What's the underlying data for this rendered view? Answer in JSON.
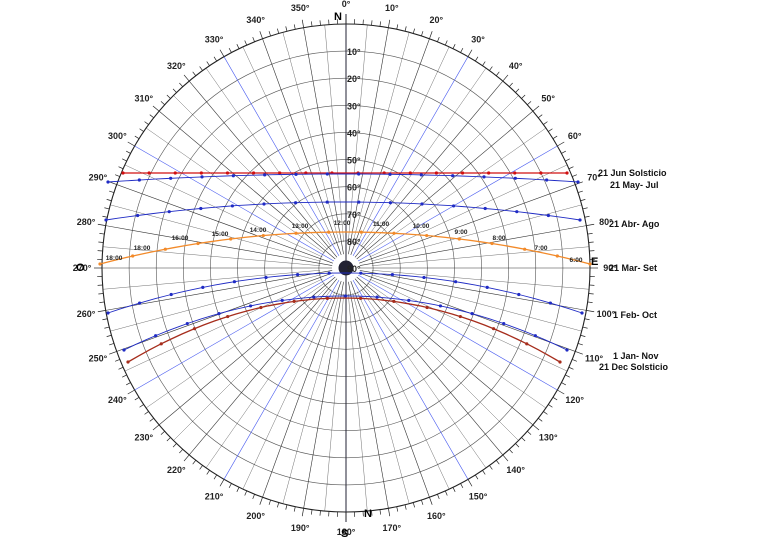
{
  "chart_data": {
    "type": "sun-path-diagram",
    "projection": "polar",
    "cardinals": {
      "north": "N",
      "south": "S",
      "east": "E",
      "west": "O",
      "north_bottom": "N"
    },
    "azimuth_labels": [
      "0°",
      "10°",
      "20°",
      "30°",
      "40°",
      "50°",
      "60°",
      "70°",
      "80°",
      "90°",
      "100°",
      "110°",
      "120°",
      "130°",
      "140°",
      "150°",
      "160°",
      "170°",
      "180°",
      "190°",
      "200°",
      "210°",
      "220°",
      "230°",
      "240°",
      "250°",
      "260°",
      "270°",
      "280°",
      "290°",
      "300°",
      "310°",
      "320°",
      "330°",
      "340°",
      "350°"
    ],
    "altitude_labels": [
      "10°",
      "20°",
      "30°",
      "40°",
      "50°",
      "60°",
      "70°",
      "80°",
      "90°"
    ],
    "altitude_rings": [
      10,
      20,
      30,
      40,
      50,
      60,
      70,
      80
    ],
    "hour_labels": [
      "6:00",
      "7:00",
      "8:00",
      "9:00",
      "10:00",
      "11:00",
      "12:00",
      "13:00",
      "14:00",
      "15:00",
      "16:00",
      "18:00",
      "18:00"
    ],
    "colors": {
      "solstice_summer": "#d01010",
      "solstice_winter": "#a62d1c",
      "equinox": "#f28a2a",
      "monthly": "#1f2bc4",
      "grid": "#333333",
      "blue_radial": "#4a5cf0"
    },
    "series": [
      {
        "name": "21 Jun Solsticio",
        "color": "#d01010",
        "points": [
          [
            0,
            0.715
          ],
          [
            18,
            0.693
          ],
          [
            36,
            0.67
          ],
          [
            54,
            0.65
          ],
          [
            72,
            0.63
          ],
          [
            90,
            0.615
          ],
          [
            108,
            0.603
          ],
          [
            126,
            0.593
          ],
          [
            144,
            0.59
          ],
          [
            162,
            0.59
          ],
          [
            180,
            0.593
          ],
          [
            198,
            0.603
          ],
          [
            216,
            0.615
          ],
          [
            234,
            0.63
          ],
          [
            252,
            0.65
          ],
          [
            270,
            0.67
          ],
          [
            288,
            0.693
          ],
          [
            306,
            0.715
          ]
        ]
      },
      {
        "name": "21 May- Jul",
        "color": "#1f2bc4",
        "points": [
          [
            0,
            0.64
          ],
          [
            20,
            0.632
          ],
          [
            40,
            0.621
          ],
          [
            60,
            0.613
          ],
          [
            80,
            0.604
          ],
          [
            100,
            0.598
          ],
          [
            120,
            0.594
          ],
          [
            140,
            0.591
          ],
          [
            160,
            0.591
          ],
          [
            180,
            0.594
          ],
          [
            200,
            0.598
          ],
          [
            220,
            0.604
          ],
          [
            240,
            0.613
          ],
          [
            260,
            0.621
          ],
          [
            280,
            0.632
          ],
          [
            300,
            0.64
          ]
        ]
      },
      {
        "name": "21 Abr- Ago",
        "color": "#1f2bc4",
        "points": [
          [
            0,
            0.548
          ],
          [
            20,
            0.537
          ],
          [
            40,
            0.527
          ],
          [
            60,
            0.518
          ],
          [
            80,
            0.511
          ],
          [
            100,
            0.506
          ],
          [
            120,
            0.503
          ],
          [
            140,
            0.501
          ],
          [
            160,
            0.501
          ],
          [
            180,
            0.503
          ],
          [
            200,
            0.506
          ],
          [
            220,
            0.511
          ],
          [
            240,
            0.518
          ],
          [
            260,
            0.527
          ],
          [
            280,
            0.537
          ],
          [
            300,
            0.548
          ]
        ]
      },
      {
        "name": "21 Mar- Set",
        "color": "#f28a2a",
        "points": [
          [
            0,
            0.5
          ],
          [
            20,
            0.488
          ],
          [
            40,
            0.477
          ],
          [
            60,
            0.468
          ],
          [
            80,
            0.461
          ],
          [
            100,
            0.456
          ],
          [
            120,
            0.453
          ],
          [
            140,
            0.451
          ],
          [
            160,
            0.451
          ],
          [
            180,
            0.453
          ],
          [
            200,
            0.456
          ],
          [
            220,
            0.461
          ],
          [
            240,
            0.468
          ],
          [
            260,
            0.477
          ],
          [
            280,
            0.488
          ],
          [
            300,
            0.5
          ]
        ]
      },
      {
        "name": "1 Feb- Oct",
        "color": "#1f2bc4",
        "points": [
          [
            0,
            0.545
          ],
          [
            20,
            0.553
          ],
          [
            40,
            0.562
          ],
          [
            60,
            0.57
          ],
          [
            80,
            0.577
          ],
          [
            100,
            0.582
          ],
          [
            120,
            0.585
          ],
          [
            140,
            0.587
          ],
          [
            160,
            0.587
          ],
          [
            180,
            0.585
          ],
          [
            200,
            0.582
          ],
          [
            220,
            0.577
          ],
          [
            240,
            0.57
          ],
          [
            260,
            0.562
          ],
          [
            280,
            0.553
          ],
          [
            300,
            0.545
          ]
        ]
      },
      {
        "name": "1 Jan- Nov",
        "color": "#1f2bc4",
        "points": [
          [
            0,
            0.6
          ],
          [
            20,
            0.612
          ],
          [
            40,
            0.622
          ],
          [
            60,
            0.631
          ],
          [
            80,
            0.638
          ],
          [
            100,
            0.643
          ],
          [
            120,
            0.646
          ],
          [
            140,
            0.647
          ],
          [
            160,
            0.646
          ],
          [
            180,
            0.643
          ],
          [
            200,
            0.638
          ],
          [
            220,
            0.631
          ],
          [
            240,
            0.622
          ],
          [
            260,
            0.612
          ],
          [
            280,
            0.6
          ]
        ]
      },
      {
        "name": "21 Dec Solsticio",
        "color": "#a62d1c",
        "points": [
          [
            0,
            0.62
          ],
          [
            20,
            0.633
          ],
          [
            40,
            0.643
          ],
          [
            60,
            0.651
          ],
          [
            80,
            0.657
          ],
          [
            100,
            0.661
          ],
          [
            120,
            0.663
          ],
          [
            140,
            0.663
          ],
          [
            160,
            0.661
          ],
          [
            180,
            0.657
          ],
          [
            200,
            0.651
          ],
          [
            220,
            0.643
          ],
          [
            240,
            0.633
          ],
          [
            260,
            0.62
          ]
        ]
      }
    ]
  }
}
